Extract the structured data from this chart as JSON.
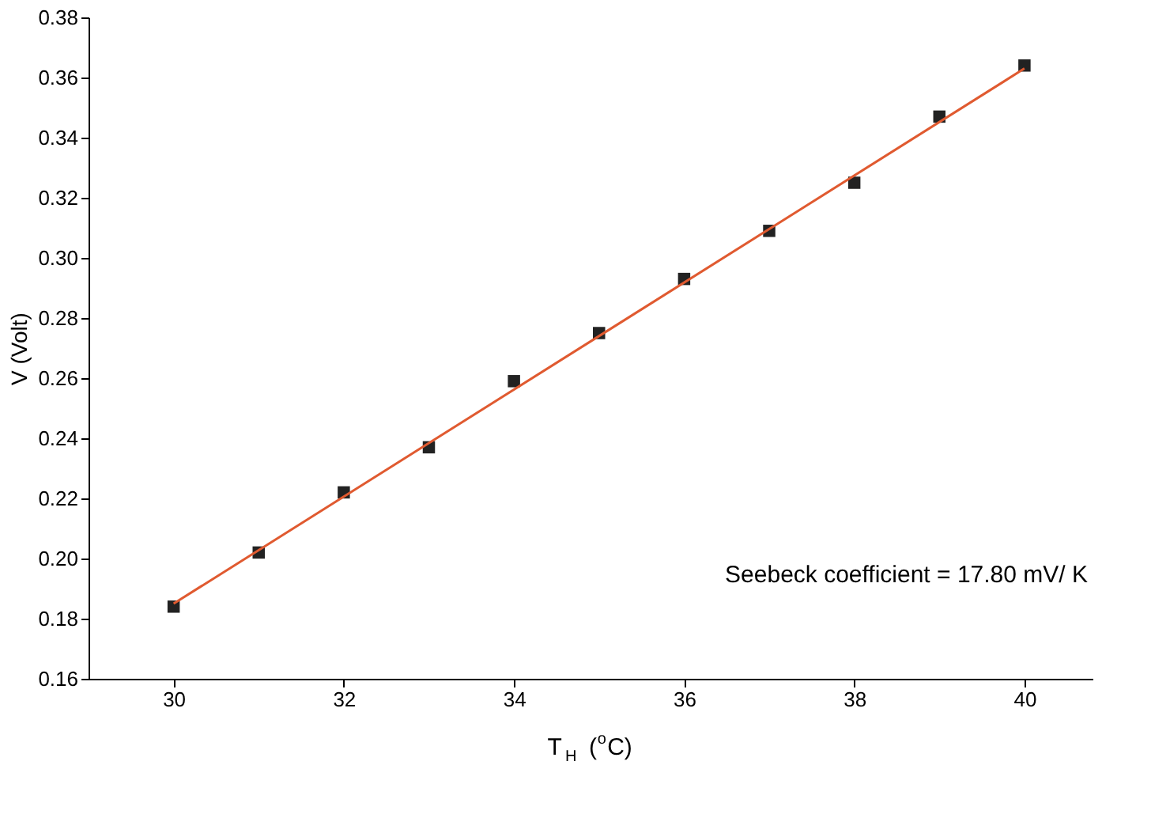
{
  "chart_data": {
    "type": "scatter",
    "xlabel": "T$_{H}$ ($^{o}$C)",
    "ylabel": "V (Volt)",
    "x": [
      30,
      31,
      32,
      33,
      34,
      35,
      36,
      37,
      38,
      39,
      40
    ],
    "series": [
      {
        "color": "#222222",
        "marker": "square",
        "values": [
          0.184,
          0.202,
          0.222,
          0.237,
          0.259,
          0.275,
          0.293,
          0.309,
          0.325,
          0.347,
          0.364
        ]
      },
      {
        "type": "line",
        "color": "#e05a30",
        "x": [
          30,
          40
        ],
        "values": [
          0.185,
          0.363
        ],
        "line_style": "solid"
      }
    ],
    "xlim": [
      29,
      40.8
    ],
    "xticks": [
      30,
      32,
      34,
      36,
      38,
      40
    ],
    "ylim": [
      0.16,
      0.38
    ],
    "yticks": [
      {
        "value": 0.16,
        "label": "0.16"
      },
      {
        "value": 0.18,
        "label": "0.18"
      },
      {
        "value": 0.2,
        "label": "0.20"
      },
      {
        "value": 0.22,
        "label": "0.22"
      },
      {
        "value": 0.24,
        "label": "0.24"
      },
      {
        "value": 0.26,
        "label": "0.26"
      },
      {
        "value": 0.28,
        "label": "0.28"
      },
      {
        "value": 0.3,
        "label": "0.30"
      },
      {
        "value": 0.32,
        "label": "0.32"
      },
      {
        "value": 0.34,
        "label": "0.34"
      },
      {
        "value": 0.36,
        "label": "0.36"
      },
      {
        "value": 0.38,
        "label": "0.38"
      }
    ],
    "grid": false,
    "annotations": [
      "Seebeck coefficient = 17.80 mV/ K"
    ]
  }
}
